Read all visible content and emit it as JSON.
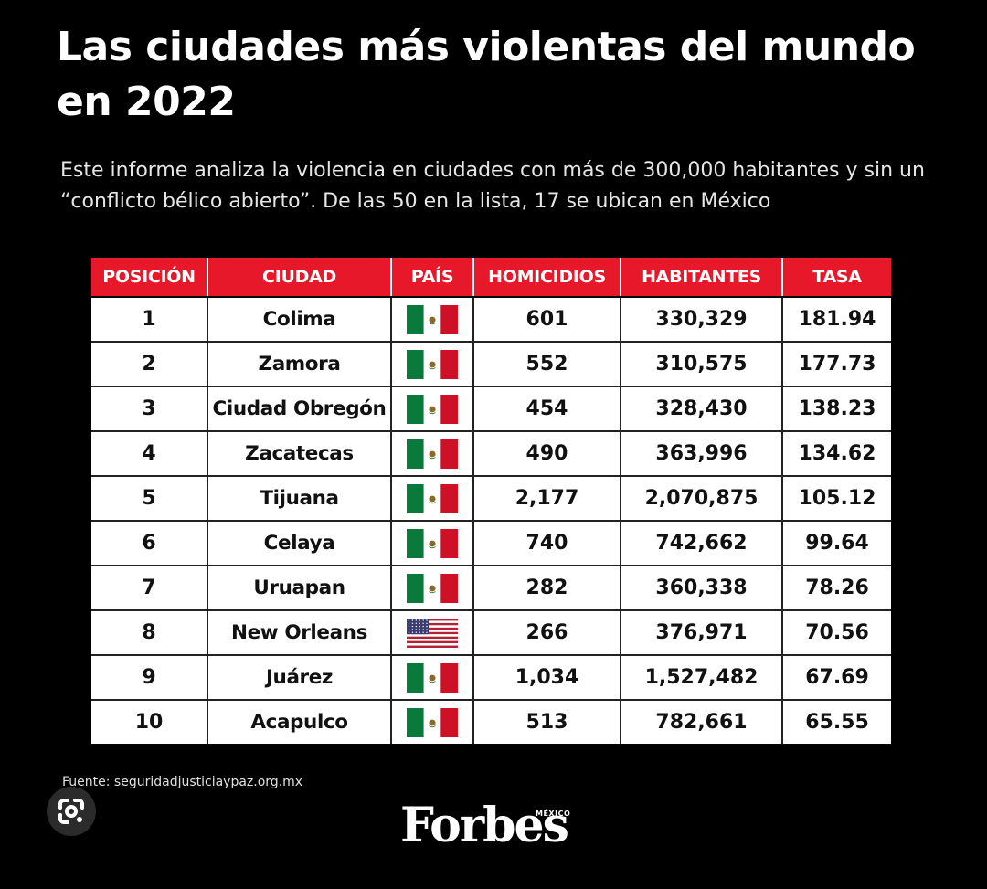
{
  "title": "Las ciudades más violentas del mundo en 2022",
  "subtitle": "Este informe analiza la violencia en ciudades con más de 300,000 habitantes y sin un “conflicto bélico abierto”. De las 50 en la lista, 17 se ubican en México",
  "chart_data": {
    "type": "table",
    "columns": [
      "POSICIÓN",
      "CIUDAD",
      "PAÍS",
      "HOMICIDIOS",
      "HABITANTES",
      "TASA"
    ],
    "rows": [
      {
        "posicion": "1",
        "ciudad": "Colima",
        "pais": "mexico-flag",
        "homicidios": "601",
        "habitantes": "330,329",
        "tasa": "181.94"
      },
      {
        "posicion": "2",
        "ciudad": "Zamora",
        "pais": "mexico-flag",
        "homicidios": "552",
        "habitantes": "310,575",
        "tasa": "177.73"
      },
      {
        "posicion": "3",
        "ciudad": "Ciudad Obregón",
        "pais": "mexico-flag",
        "homicidios": "454",
        "habitantes": "328,430",
        "tasa": "138.23"
      },
      {
        "posicion": "4",
        "ciudad": "Zacatecas",
        "pais": "mexico-flag",
        "homicidios": "490",
        "habitantes": "363,996",
        "tasa": "134.62"
      },
      {
        "posicion": "5",
        "ciudad": "Tijuana",
        "pais": "mexico-flag",
        "homicidios": "2,177",
        "habitantes": "2,070,875",
        "tasa": "105.12"
      },
      {
        "posicion": "6",
        "ciudad": "Celaya",
        "pais": "mexico-flag",
        "homicidios": "740",
        "habitantes": "742,662",
        "tasa": "99.64"
      },
      {
        "posicion": "7",
        "ciudad": "Uruapan",
        "pais": "mexico-flag",
        "homicidios": "282",
        "habitantes": "360,338",
        "tasa": "78.26"
      },
      {
        "posicion": "8",
        "ciudad": "New Orleans",
        "pais": "usa-flag",
        "homicidios": "266",
        "habitantes": "376,971",
        "tasa": "70.56"
      },
      {
        "posicion": "9",
        "ciudad": "Juárez",
        "pais": "mexico-flag",
        "homicidios": "1,034",
        "habitantes": "1,527,482",
        "tasa": "67.69"
      },
      {
        "posicion": "10",
        "ciudad": "Acapulco",
        "pais": "mexico-flag",
        "homicidios": "513",
        "habitantes": "782,661",
        "tasa": "65.55"
      }
    ]
  },
  "source": "Fuente: seguridadjusticiaypaz.org.mx",
  "logo": {
    "text": "Forbes",
    "sub": "MÉXICO"
  },
  "colors": {
    "background": "#000000",
    "header": "#e8182b",
    "mexico_green": "#0a7a3c",
    "mexico_red": "#ce1126",
    "usa_red": "#b22234",
    "usa_blue": "#3c3b6e"
  },
  "icons": {
    "lens": "google-lens-icon"
  }
}
